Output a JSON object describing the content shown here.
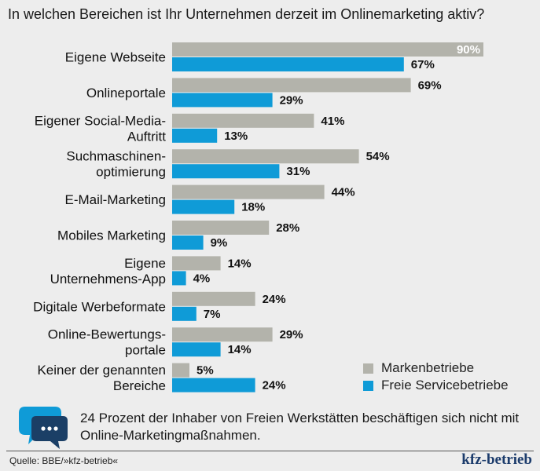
{
  "title": "In welchen Bereichen ist Ihr Unternehmen derzeit im Onlinemarketing aktiv?",
  "chart_data": {
    "type": "bar",
    "orientation": "horizontal",
    "title": "In welchen Bereichen ist Ihr Unternehmen derzeit im Onlinemarketing aktiv?",
    "xlim": [
      0,
      100
    ],
    "categories": [
      [
        "Eigene Webseite"
      ],
      [
        "Onlineportale"
      ],
      [
        "Eigener Social-Media-",
        "Auftritt"
      ],
      [
        "Suchmaschinen-",
        "optimierung"
      ],
      [
        "E-Mail-Marketing"
      ],
      [
        "Mobiles Marketing"
      ],
      [
        "Eigene",
        "Unternehmens-App"
      ],
      [
        "Digitale Werbeformate"
      ],
      [
        "Online-Bewertungs-",
        "portale"
      ],
      [
        "Keiner der genannten",
        "Bereiche"
      ]
    ],
    "series": [
      {
        "name": "Markenbetriebe",
        "color": "#b3b3ab",
        "values": [
          90,
          69,
          41,
          54,
          44,
          28,
          14,
          24,
          29,
          5
        ]
      },
      {
        "name": "Freie Servicebetriebe",
        "color": "#0f9bd7",
        "values": [
          67,
          29,
          13,
          31,
          18,
          9,
          4,
          7,
          14,
          24
        ]
      }
    ],
    "value_suffix": "%"
  },
  "legend": {
    "items": [
      {
        "label": "Markenbetriebe",
        "color": "#b3b3ab"
      },
      {
        "label": "Freie Servicebetriebe",
        "color": "#0f9bd7"
      }
    ]
  },
  "note": "24 Prozent der Inhaber von Freien Werkstätten beschäftigen sich nicht mit Online-Marketingmaßnahmen.",
  "source": "Quelle: BBE/»kfz-betrieb«",
  "brand": "kfz-betrieb",
  "icon": "speech-bubble-icon"
}
